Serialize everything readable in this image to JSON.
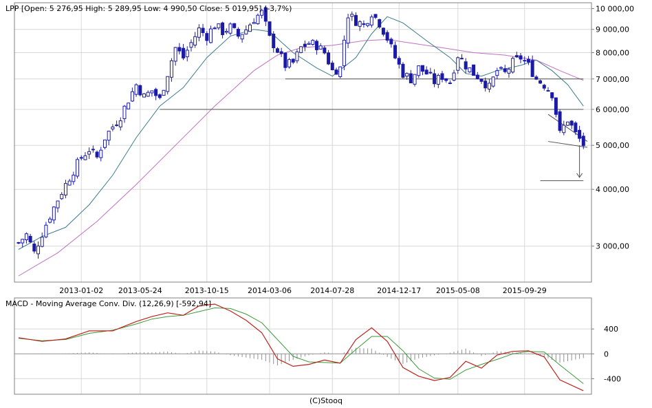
{
  "colors": {
    "background": "#ffffff",
    "frame": "#808080",
    "grid": "#d8d8d8",
    "candle_up": "#ffffff",
    "candle_down": "#1a1aa6",
    "candle_outline": "#1a1aa6",
    "ma_short": "#3a7a8c",
    "ma_long": "#c070c0",
    "support_lines": "#505050",
    "macd_line": "#c0201a",
    "signal_line": "#3a9a3a",
    "histogram": "#909090",
    "zero_line": "#909090"
  },
  "chart_data": [
    {
      "type": "candlestick",
      "title": "LPP [Open: 5 276,95  High: 5 289,95  Low: 4 990,50  Close: 5 019,95] (-3,7%)",
      "y_scale": "log",
      "ylim": [
        2500,
        10300
      ],
      "y_ticks": [
        3000,
        4000,
        5000,
        6000,
        7000,
        8000,
        9000,
        10000
      ],
      "y_tick_labels": [
        "3 000,00",
        "4 000,00",
        "5 000,00",
        "6 000,00",
        "7 000,00",
        "8 000,00",
        "9 000,00",
        "10 000,00"
      ],
      "x_tick_labels": [
        "2013-01-02",
        "2013-05-24",
        "2013-10-15",
        "2014-03-06",
        "2014-07-28",
        "2014-12-17",
        "2015-05-08",
        "2015-09-29"
      ],
      "grid": true,
      "legend": "none",
      "close_path": [
        [
          0,
          3050
        ],
        [
          2,
          3180
        ],
        [
          4,
          2900
        ],
        [
          6,
          3200
        ],
        [
          8,
          3500
        ],
        [
          10,
          3800
        ],
        [
          12,
          4100
        ],
        [
          14,
          4400
        ],
        [
          16,
          4700
        ],
        [
          18,
          4900
        ],
        [
          20,
          4700
        ],
        [
          22,
          5200
        ],
        [
          24,
          5500
        ],
        [
          26,
          5800
        ],
        [
          28,
          6300
        ],
        [
          30,
          6800
        ],
        [
          32,
          6400
        ],
        [
          34,
          6600
        ],
        [
          36,
          6300
        ],
        [
          38,
          7200
        ],
        [
          40,
          8200
        ],
        [
          42,
          7800
        ],
        [
          44,
          8400
        ],
        [
          46,
          9000
        ],
        [
          48,
          8700
        ],
        [
          50,
          9200
        ],
        [
          52,
          8900
        ],
        [
          54,
          9100
        ],
        [
          56,
          8700
        ],
        [
          58,
          9000
        ],
        [
          60,
          9500
        ],
        [
          62,
          9800
        ],
        [
          64,
          8600
        ],
        [
          66,
          8100
        ],
        [
          68,
          7500
        ],
        [
          70,
          7600
        ],
        [
          72,
          8200
        ],
        [
          74,
          8400
        ],
        [
          76,
          8300
        ],
        [
          78,
          8000
        ],
        [
          80,
          7300
        ],
        [
          82,
          7400
        ],
        [
          84,
          9700
        ],
        [
          86,
          9400
        ],
        [
          88,
          9200
        ],
        [
          90,
          9800
        ],
        [
          92,
          9300
        ],
        [
          94,
          8600
        ],
        [
          96,
          7800
        ],
        [
          98,
          7200
        ],
        [
          100,
          7000
        ],
        [
          102,
          7400
        ],
        [
          104,
          7200
        ],
        [
          106,
          6900
        ],
        [
          108,
          7100
        ],
        [
          110,
          6900
        ],
        [
          112,
          7900
        ],
        [
          114,
          7500
        ],
        [
          116,
          7200
        ],
        [
          118,
          7000
        ],
        [
          120,
          6700
        ],
        [
          122,
          7300
        ],
        [
          124,
          7200
        ],
        [
          126,
          7600
        ],
        [
          128,
          7800
        ],
        [
          130,
          7500
        ],
        [
          132,
          7000
        ],
        [
          134,
          6800
        ],
        [
          136,
          6500
        ],
        [
          138,
          5300
        ],
        [
          140,
          5700
        ],
        [
          142,
          5300
        ],
        [
          144,
          5020
        ]
      ],
      "ma_short_path": [
        [
          0,
          2950
        ],
        [
          6,
          3150
        ],
        [
          12,
          3300
        ],
        [
          18,
          3700
        ],
        [
          24,
          4300
        ],
        [
          30,
          5200
        ],
        [
          36,
          6100
        ],
        [
          42,
          6700
        ],
        [
          48,
          7800
        ],
        [
          54,
          8700
        ],
        [
          60,
          9000
        ],
        [
          64,
          8900
        ],
        [
          70,
          8000
        ],
        [
          76,
          7400
        ],
        [
          80,
          7100
        ],
        [
          86,
          7800
        ],
        [
          90,
          8800
        ],
        [
          94,
          9600
        ],
        [
          98,
          9300
        ],
        [
          104,
          8500
        ],
        [
          110,
          7800
        ],
        [
          114,
          7200
        ],
        [
          118,
          7100
        ],
        [
          122,
          7300
        ],
        [
          128,
          7500
        ],
        [
          132,
          7700
        ],
        [
          136,
          7300
        ],
        [
          140,
          6800
        ],
        [
          144,
          6100
        ]
      ],
      "ma_long_path": [
        [
          0,
          2580
        ],
        [
          10,
          2900
        ],
        [
          20,
          3400
        ],
        [
          30,
          4100
        ],
        [
          40,
          5000
        ],
        [
          50,
          6100
        ],
        [
          60,
          7300
        ],
        [
          66,
          7900
        ],
        [
          72,
          8200
        ],
        [
          80,
          8300
        ],
        [
          88,
          8500
        ],
        [
          94,
          8550
        ],
        [
          100,
          8400
        ],
        [
          108,
          8200
        ],
        [
          116,
          8000
        ],
        [
          124,
          7900
        ],
        [
          132,
          7700
        ],
        [
          138,
          7300
        ],
        [
          144,
          6950
        ]
      ],
      "support_lines": [
        {
          "from": [
            36,
            6000
          ],
          "to": [
            144,
            6000
          ]
        },
        {
          "from": [
            68,
            7000
          ],
          "to": [
            144,
            7000
          ]
        },
        {
          "from": [
            133,
            4180
          ],
          "to": [
            144,
            4180
          ]
        }
      ],
      "channel_lines": [
        {
          "from": [
            135,
            5850
          ],
          "to": [
            145,
            5100
          ]
        },
        {
          "from": [
            135,
            5100
          ],
          "to": [
            145,
            4950
          ]
        }
      ],
      "target_arrow": {
        "from": [
          143,
          5000
        ],
        "to": [
          143,
          4250
        ]
      }
    },
    {
      "type": "line",
      "title": "MACD - Moving Average Conv. Div. (12,26,9) [-592,94]",
      "ylim": [
        -650,
        900
      ],
      "y_ticks": [
        -400,
        0,
        400
      ],
      "y_tick_labels": [
        "-400",
        "0",
        "400"
      ],
      "grid": true,
      "legend": "none",
      "series": [
        {
          "role": "macd",
          "values_path": [
            [
              0,
              260
            ],
            [
              6,
              200
            ],
            [
              12,
              240
            ],
            [
              18,
              370
            ],
            [
              24,
              370
            ],
            [
              30,
              520
            ],
            [
              34,
              600
            ],
            [
              38,
              660
            ],
            [
              42,
              620
            ],
            [
              46,
              770
            ],
            [
              50,
              800
            ],
            [
              54,
              690
            ],
            [
              58,
              540
            ],
            [
              62,
              340
            ],
            [
              66,
              -80
            ],
            [
              70,
              -200
            ],
            [
              74,
              -170
            ],
            [
              78,
              -100
            ],
            [
              82,
              -150
            ],
            [
              86,
              230
            ],
            [
              90,
              420
            ],
            [
              94,
              200
            ],
            [
              98,
              -220
            ],
            [
              102,
              -360
            ],
            [
              106,
              -430
            ],
            [
              110,
              -380
            ],
            [
              114,
              -120
            ],
            [
              118,
              -230
            ],
            [
              122,
              -20
            ],
            [
              126,
              40
            ],
            [
              130,
              50
            ],
            [
              134,
              -50
            ],
            [
              138,
              -420
            ],
            [
              144,
              -593
            ]
          ]
        },
        {
          "role": "signal",
          "values_path": [
            [
              0,
              250
            ],
            [
              6,
              210
            ],
            [
              12,
              230
            ],
            [
              18,
              330
            ],
            [
              24,
              380
            ],
            [
              30,
              480
            ],
            [
              34,
              560
            ],
            [
              38,
              600
            ],
            [
              42,
              620
            ],
            [
              46,
              680
            ],
            [
              50,
              740
            ],
            [
              54,
              730
            ],
            [
              58,
              640
            ],
            [
              62,
              500
            ],
            [
              66,
              230
            ],
            [
              70,
              -40
            ],
            [
              74,
              -130
            ],
            [
              78,
              -140
            ],
            [
              82,
              -150
            ],
            [
              86,
              70
            ],
            [
              90,
              280
            ],
            [
              94,
              280
            ],
            [
              98,
              50
            ],
            [
              102,
              -240
            ],
            [
              106,
              -390
            ],
            [
              110,
              -410
            ],
            [
              114,
              -260
            ],
            [
              118,
              -170
            ],
            [
              122,
              -90
            ],
            [
              126,
              0
            ],
            [
              130,
              40
            ],
            [
              134,
              30
            ],
            [
              138,
              -180
            ],
            [
              144,
              -480
            ]
          ]
        }
      ]
    }
  ],
  "footer": "(C)Stooq"
}
